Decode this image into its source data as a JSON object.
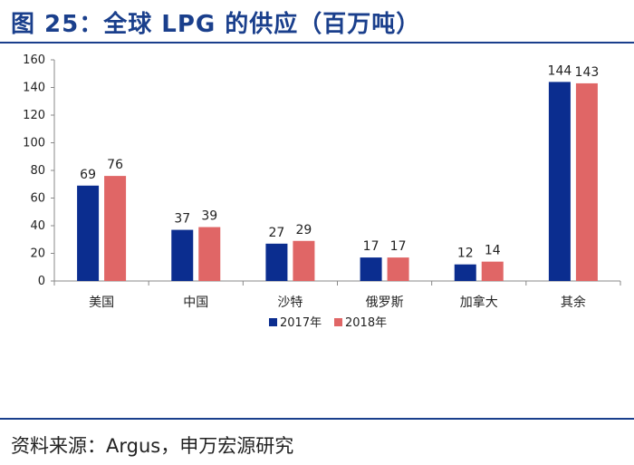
{
  "figure": {
    "title": "图 25：全球 LPG 的供应（百万吨）",
    "source": "资料来源：Argus，申万宏源研究"
  },
  "chart_data": {
    "type": "bar",
    "categories": [
      "美国",
      "中国",
      "沙特",
      "俄罗斯",
      "加拿大",
      "其余"
    ],
    "series": [
      {
        "name": "2017年",
        "color": "#0b2d8f",
        "values": [
          69,
          37,
          27,
          17,
          12,
          144
        ]
      },
      {
        "name": "2018年",
        "color": "#e06666",
        "values": [
          76,
          39,
          29,
          17,
          14,
          143
        ]
      }
    ],
    "ylim": [
      0,
      160
    ],
    "yticks": [
      0,
      20,
      40,
      60,
      80,
      100,
      120,
      140,
      160
    ],
    "legend_position": "bottom",
    "grid": false
  }
}
